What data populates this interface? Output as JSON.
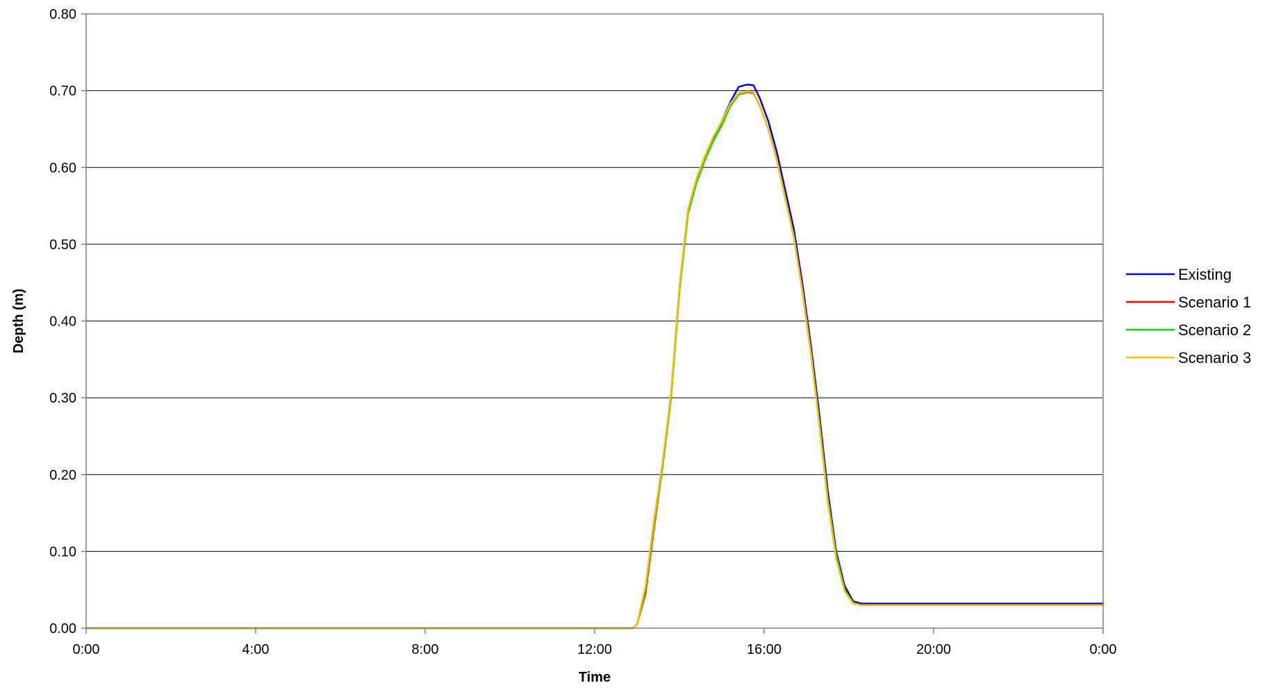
{
  "chart_data": {
    "type": "line",
    "title": "",
    "xlabel": "Time",
    "ylabel": "Depth (m)",
    "x_unit": "hours",
    "xlim": [
      0,
      24
    ],
    "ylim": [
      0,
      0.8
    ],
    "y_ticks": [
      "0.00",
      "0.10",
      "0.20",
      "0.30",
      "0.40",
      "0.50",
      "0.60",
      "0.70",
      "0.80"
    ],
    "x_ticks": [
      "0:00",
      "4:00",
      "8:00",
      "12:00",
      "16:00",
      "20:00",
      "0:00"
    ],
    "grid": "horizontal",
    "legend_position": "right",
    "series": [
      {
        "name": "Existing",
        "color": "#0000ff",
        "x": [
          0,
          12.9,
          13.0,
          13.2,
          13.4,
          13.6,
          13.8,
          14.0,
          14.2,
          14.4,
          14.6,
          14.8,
          15.0,
          15.2,
          15.4,
          15.6,
          15.75,
          15.9,
          16.1,
          16.3,
          16.5,
          16.7,
          16.9,
          17.1,
          17.3,
          17.5,
          17.7,
          17.9,
          18.1,
          18.3,
          18.5,
          24
        ],
        "y": [
          0,
          0,
          0.005,
          0.05,
          0.14,
          0.21,
          0.3,
          0.44,
          0.54,
          0.58,
          0.61,
          0.635,
          0.66,
          0.685,
          0.705,
          0.708,
          0.707,
          0.69,
          0.66,
          0.62,
          0.57,
          0.52,
          0.45,
          0.37,
          0.28,
          0.18,
          0.1,
          0.055,
          0.035,
          0.032,
          0.032,
          0.032
        ]
      },
      {
        "name": "Scenario 1",
        "color": "#ff0000",
        "x": [
          0,
          12.9,
          13.0,
          13.2,
          13.4,
          13.6,
          13.8,
          14.0,
          14.2,
          14.4,
          14.6,
          14.8,
          15.0,
          15.2,
          15.4,
          15.6,
          15.75,
          15.9,
          16.1,
          16.3,
          16.5,
          16.7,
          16.9,
          17.1,
          17.3,
          17.5,
          17.7,
          17.9,
          18.1,
          18.3,
          18.5,
          24
        ],
        "y": [
          0,
          0,
          0.005,
          0.045,
          0.13,
          0.21,
          0.3,
          0.44,
          0.54,
          0.58,
          0.61,
          0.635,
          0.655,
          0.68,
          0.695,
          0.698,
          0.697,
          0.68,
          0.65,
          0.61,
          0.56,
          0.51,
          0.44,
          0.36,
          0.27,
          0.17,
          0.095,
          0.05,
          0.033,
          0.03,
          0.03,
          0.03
        ]
      },
      {
        "name": "Scenario 2",
        "color": "#00dd00",
        "x": [
          0,
          12.9,
          13.0,
          13.2,
          13.4,
          13.6,
          13.8,
          14.0,
          14.2,
          14.4,
          14.6,
          14.8,
          15.0,
          15.2,
          15.4,
          15.6,
          15.75,
          15.9,
          16.1,
          16.3,
          16.5,
          16.7,
          16.9,
          17.1,
          17.3,
          17.5,
          17.7,
          17.9,
          18.1,
          18.3,
          18.5,
          24
        ],
        "y": [
          0,
          0,
          0.005,
          0.05,
          0.135,
          0.21,
          0.3,
          0.44,
          0.54,
          0.58,
          0.61,
          0.635,
          0.655,
          0.68,
          0.695,
          0.699,
          0.698,
          0.68,
          0.65,
          0.61,
          0.56,
          0.51,
          0.44,
          0.36,
          0.27,
          0.17,
          0.095,
          0.05,
          0.033,
          0.03,
          0.03,
          0.03
        ]
      },
      {
        "name": "Scenario 3",
        "color": "#ffc000",
        "x": [
          0,
          12.9,
          13.0,
          13.2,
          13.4,
          13.6,
          13.8,
          14.0,
          14.2,
          14.4,
          14.6,
          14.8,
          15.0,
          15.2,
          15.4,
          15.6,
          15.75,
          15.9,
          16.1,
          16.3,
          16.5,
          16.7,
          16.9,
          17.1,
          17.3,
          17.5,
          17.7,
          17.9,
          18.1,
          18.3,
          18.5,
          24
        ],
        "y": [
          0,
          0,
          0.005,
          0.055,
          0.14,
          0.215,
          0.305,
          0.445,
          0.545,
          0.585,
          0.615,
          0.64,
          0.66,
          0.683,
          0.697,
          0.699,
          0.698,
          0.68,
          0.65,
          0.61,
          0.56,
          0.51,
          0.44,
          0.36,
          0.265,
          0.165,
          0.09,
          0.048,
          0.032,
          0.03,
          0.03,
          0.03
        ]
      }
    ]
  }
}
